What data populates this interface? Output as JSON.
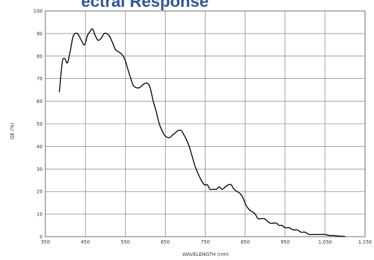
{
  "chart_data": {
    "type": "line",
    "title": "ectral Response",
    "xlabel": "WAVELENGTH (nm)",
    "ylabel": "QE (%)",
    "xlim": [
      350,
      1150
    ],
    "ylim": [
      0,
      100
    ],
    "x_ticks": [
      350,
      450,
      550,
      650,
      750,
      850,
      950,
      1050,
      1150
    ],
    "x_tick_labels": [
      "350",
      "450",
      "550",
      "650",
      "750",
      "850",
      "950",
      "1,050",
      "1,150"
    ],
    "y_ticks": [
      0,
      10,
      20,
      30,
      40,
      50,
      60,
      70,
      80,
      90,
      100
    ],
    "y_tick_labels": [
      "0",
      "10",
      "20",
      "30",
      "40",
      "50",
      "60",
      "70",
      "80",
      "90",
      "100"
    ],
    "grid": true,
    "line_color": "#000000",
    "title_color": "#2f5597",
    "series": [
      {
        "x": [
          385,
          392,
          398,
          405,
          412,
          420,
          430,
          440,
          448,
          455,
          462,
          468,
          475,
          482,
          490,
          497,
          503,
          510,
          518,
          525,
          532,
          540,
          548,
          555,
          562,
          570,
          578,
          585,
          592,
          600,
          605,
          610,
          615,
          620,
          628,
          635,
          642,
          648,
          655,
          662,
          668,
          675,
          682,
          690,
          697,
          703,
          710,
          715,
          720,
          725,
          732,
          740,
          748,
          755,
          762,
          770,
          778,
          785,
          792,
          800,
          808,
          815,
          822,
          830,
          838,
          845,
          852,
          860,
          868,
          875,
          882,
          890,
          898,
          905,
          912,
          920,
          928,
          935,
          942,
          950,
          960,
          970,
          980,
          990,
          1000,
          1010,
          1020,
          1030,
          1040,
          1050,
          1060,
          1070,
          1080,
          1090,
          1100
        ],
        "y": [
          64,
          77,
          79,
          77,
          82,
          89,
          90,
          87,
          85,
          89,
          91,
          92,
          89,
          87,
          88,
          90,
          90,
          89,
          86,
          83,
          82,
          81,
          79,
          75,
          71,
          67,
          66,
          66,
          67,
          68,
          68,
          67,
          64,
          60,
          55,
          50,
          47,
          45,
          44,
          44,
          45,
          46,
          47,
          47,
          45,
          43,
          40,
          37,
          34,
          31,
          28,
          25,
          23,
          23,
          21,
          21,
          21,
          22,
          21,
          22,
          23,
          23,
          21,
          20,
          19,
          17,
          14,
          12,
          11,
          10,
          8,
          8,
          8,
          7,
          6,
          6,
          6,
          5,
          5,
          4,
          4,
          3,
          3,
          2,
          2,
          1,
          1,
          1,
          1,
          1,
          0.5,
          0.5,
          0.3,
          0.2,
          0.1
        ]
      }
    ]
  }
}
